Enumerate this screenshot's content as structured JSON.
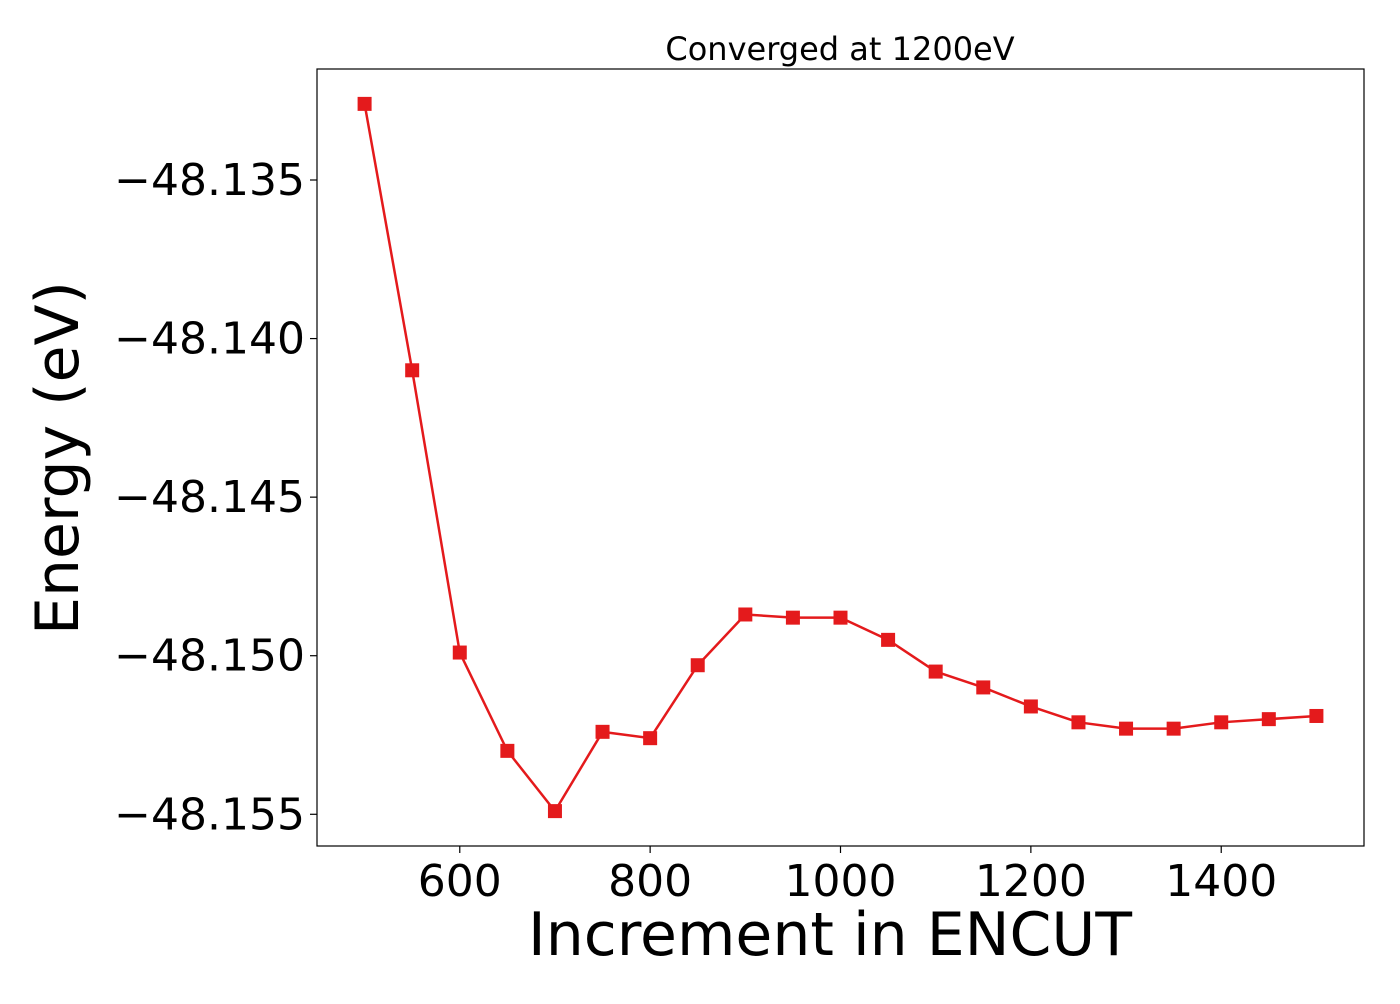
{
  "chart_data": {
    "type": "line",
    "title": "Converged at 1200eV",
    "xlabel": "Increment in ENCUT",
    "ylabel": "Energy (eV)",
    "xlim": [
      450,
      1550
    ],
    "ylim": [
      -48.156,
      -48.1315
    ],
    "x_ticks": [
      600,
      800,
      1000,
      1200,
      1400
    ],
    "x_tick_labels": [
      "600",
      "800",
      "1000",
      "1200",
      "1400"
    ],
    "y_ticks": [
      -48.135,
      -48.14,
      -48.145,
      -48.15,
      -48.155
    ],
    "y_tick_labels": [
      "−48.135",
      "−48.140",
      "−48.145",
      "−48.150",
      "−48.155"
    ],
    "grid": false,
    "series": [
      {
        "color": "#e41a1c",
        "marker": "square",
        "x": [
          500,
          550,
          600,
          650,
          700,
          750,
          800,
          850,
          900,
          950,
          1000,
          1050,
          1100,
          1150,
          1200,
          1250,
          1300,
          1350,
          1400,
          1450,
          1500
        ],
        "y": [
          -48.1326,
          -48.141,
          -48.1499,
          -48.153,
          -48.1549,
          -48.1524,
          -48.1526,
          -48.1503,
          -48.1487,
          -48.1488,
          -48.1488,
          -48.1495,
          -48.1505,
          -48.151,
          -48.1516,
          -48.1521,
          -48.1523,
          -48.1523,
          -48.1521,
          -48.152,
          -48.1519
        ]
      }
    ]
  }
}
